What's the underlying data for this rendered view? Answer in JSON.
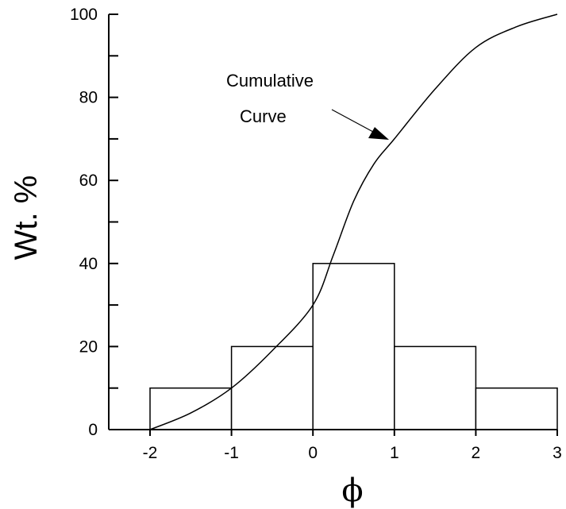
{
  "chart_data": {
    "type": "bar",
    "title": "",
    "xlabel": "ϕ",
    "ylabel": "Wt. %",
    "xlim": [
      -2,
      3
    ],
    "ylim": [
      0,
      100
    ],
    "x_ticks": [
      -2,
      -1,
      0,
      1,
      2,
      3
    ],
    "x_tick_labels": [
      "-2",
      "-1",
      "0",
      "1",
      "2",
      "3"
    ],
    "y_ticks": [
      0,
      20,
      40,
      60,
      80,
      100
    ],
    "y_tick_labels": [
      "0",
      "20",
      "40",
      "60",
      "80",
      "100"
    ],
    "y_minor_ticks": [
      10,
      30,
      50,
      70,
      90
    ],
    "bins": [
      {
        "from": -2,
        "to": -1,
        "value": 10
      },
      {
        "from": -1,
        "to": 0,
        "value": 20
      },
      {
        "from": 0,
        "to": 1,
        "value": 40
      },
      {
        "from": 1,
        "to": 2,
        "value": 20
      },
      {
        "from": 2,
        "to": 3,
        "value": 10
      }
    ],
    "cumulative_curve": {
      "x": [
        -2,
        -1.5,
        -1,
        -0.5,
        0,
        0.25,
        0.5,
        0.75,
        1,
        1.5,
        2,
        2.5,
        3
      ],
      "y": [
        0,
        4,
        10,
        19,
        30,
        42,
        55,
        64,
        70,
        82,
        92,
        97,
        100
      ]
    },
    "annotation": {
      "lines": [
        "Cumulative",
        "Curve"
      ],
      "points_to": {
        "x": 1,
        "y": 70
      }
    },
    "grid": false,
    "legend": "none"
  }
}
